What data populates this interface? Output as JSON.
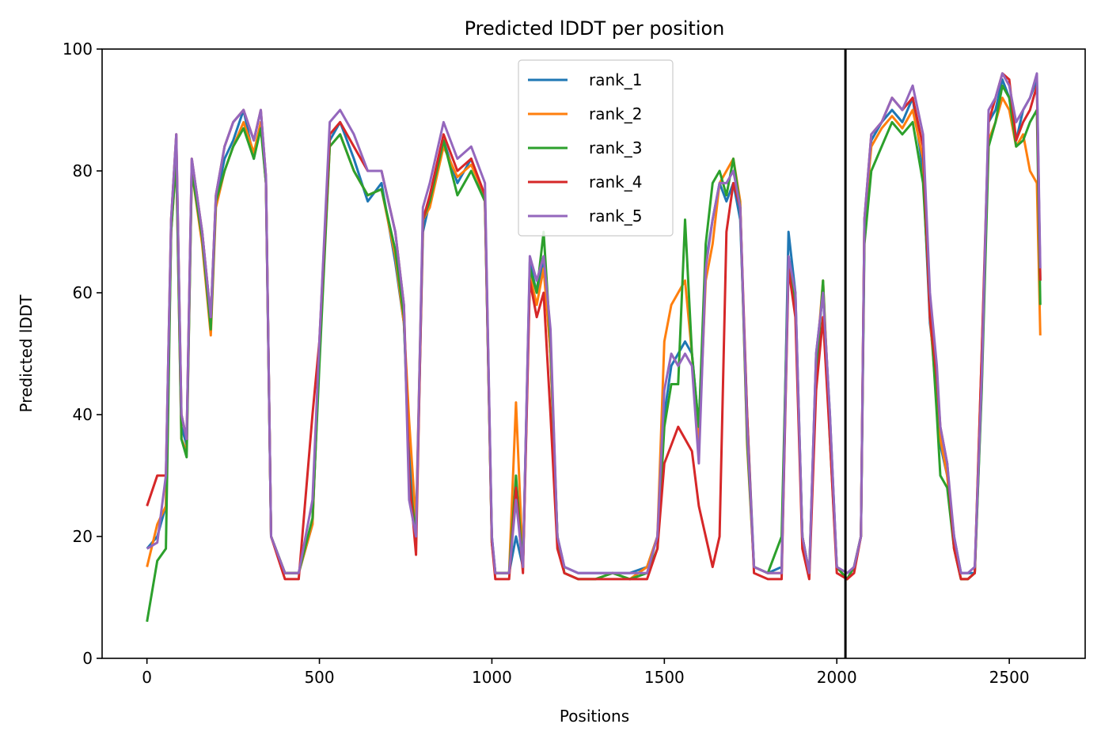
{
  "chart_data": {
    "type": "line",
    "title": "Predicted lDDT per position",
    "xlabel": "Positions",
    "ylabel": "Predicted lDDT",
    "xlim": [
      -130,
      2720
    ],
    "ylim": [
      0,
      100
    ],
    "xticks": [
      0,
      500,
      1000,
      1500,
      2000,
      2500
    ],
    "yticks": [
      0,
      20,
      40,
      60,
      80,
      100
    ],
    "grid": false,
    "legend_position": "upper center",
    "vline": {
      "x": 2025,
      "color": "#000000"
    },
    "x": [
      0,
      30,
      55,
      70,
      85,
      100,
      115,
      130,
      160,
      185,
      200,
      225,
      250,
      280,
      310,
      330,
      345,
      360,
      400,
      440,
      480,
      500,
      530,
      560,
      600,
      640,
      680,
      720,
      745,
      760,
      780,
      800,
      820,
      860,
      900,
      940,
      980,
      1000,
      1010,
      1050,
      1070,
      1090,
      1110,
      1130,
      1150,
      1170,
      1190,
      1210,
      1250,
      1300,
      1350,
      1400,
      1450,
      1480,
      1500,
      1520,
      1540,
      1560,
      1580,
      1600,
      1620,
      1640,
      1660,
      1680,
      1700,
      1720,
      1740,
      1760,
      1800,
      1840,
      1860,
      1880,
      1900,
      1920,
      1940,
      1960,
      1980,
      2000,
      2030,
      2050,
      2070,
      2080,
      2100,
      2130,
      2160,
      2190,
      2220,
      2250,
      2270,
      2290,
      2300,
      2320,
      2340,
      2360,
      2380,
      2400,
      2420,
      2440,
      2460,
      2480,
      2500,
      2520,
      2540,
      2560,
      2580,
      2590
    ],
    "series": [
      {
        "name": "rank_1",
        "color": "#1f77b4",
        "values": [
          18,
          20,
          25,
          70,
          85,
          38,
          35,
          80,
          70,
          55,
          75,
          82,
          85,
          90,
          82,
          88,
          78,
          20,
          14,
          14,
          22,
          50,
          85,
          88,
          82,
          75,
          78,
          65,
          55,
          35,
          20,
          70,
          75,
          85,
          78,
          82,
          75,
          20,
          14,
          14,
          20,
          15,
          65,
          60,
          65,
          50,
          20,
          15,
          14,
          14,
          14,
          14,
          15,
          20,
          40,
          48,
          50,
          52,
          50,
          38,
          65,
          72,
          78,
          75,
          78,
          72,
          40,
          15,
          14,
          15,
          70,
          60,
          20,
          14,
          50,
          60,
          40,
          15,
          13,
          15,
          20,
          70,
          85,
          88,
          90,
          88,
          92,
          80,
          55,
          45,
          35,
          30,
          20,
          14,
          14,
          14,
          45,
          88,
          90,
          95,
          92,
          85,
          90,
          92,
          95,
          62
        ]
      },
      {
        "name": "rank_2",
        "color": "#ff7f0e",
        "values": [
          15,
          22,
          25,
          70,
          82,
          36,
          34,
          80,
          68,
          53,
          74,
          80,
          84,
          88,
          83,
          88,
          78,
          20,
          14,
          14,
          22,
          50,
          84,
          86,
          80,
          76,
          77,
          66,
          55,
          39,
          22,
          72,
          74,
          84,
          79,
          81,
          76,
          19,
          14,
          14,
          42,
          15,
          63,
          58,
          64,
          50,
          20,
          14,
          13,
          13,
          14,
          13,
          15,
          20,
          52,
          58,
          60,
          62,
          50,
          35,
          62,
          68,
          78,
          80,
          82,
          75,
          35,
          15,
          14,
          14,
          65,
          58,
          20,
          14,
          48,
          62,
          38,
          15,
          13,
          15,
          20,
          72,
          84,
          87,
          89,
          87,
          90,
          82,
          56,
          42,
          36,
          30,
          18,
          13,
          13,
          14,
          50,
          85,
          88,
          92,
          90,
          84,
          86,
          80,
          78,
          53
        ]
      },
      {
        "name": "rank_3",
        "color": "#2ca02c",
        "values": [
          6,
          16,
          18,
          70,
          82,
          36,
          33,
          80,
          69,
          54,
          75,
          80,
          84,
          87,
          82,
          87,
          78,
          20,
          14,
          14,
          23,
          48,
          84,
          86,
          80,
          76,
          77,
          67,
          56,
          30,
          20,
          72,
          75,
          85,
          76,
          80,
          75,
          19,
          14,
          14,
          30,
          15,
          64,
          60,
          70,
          52,
          20,
          14,
          13,
          13,
          14,
          13,
          14,
          18,
          38,
          45,
          45,
          72,
          50,
          38,
          68,
          78,
          80,
          76,
          82,
          74,
          36,
          15,
          14,
          20,
          66,
          58,
          20,
          14,
          46,
          62,
          36,
          15,
          13,
          15,
          20,
          68,
          80,
          84,
          88,
          86,
          88,
          78,
          58,
          40,
          30,
          28,
          18,
          13,
          13,
          14,
          44,
          84,
          88,
          94,
          92,
          84,
          85,
          88,
          90,
          58
        ]
      },
      {
        "name": "rank_4",
        "color": "#d62728",
        "values": [
          25,
          30,
          30,
          72,
          86,
          40,
          36,
          82,
          70,
          56,
          76,
          84,
          88,
          90,
          85,
          90,
          79,
          20,
          13,
          13,
          40,
          52,
          86,
          88,
          84,
          80,
          80,
          70,
          58,
          30,
          17,
          72,
          76,
          86,
          80,
          82,
          76,
          19,
          13,
          13,
          28,
          14,
          62,
          56,
          60,
          40,
          18,
          14,
          13,
          13,
          13,
          13,
          13,
          18,
          32,
          35,
          38,
          36,
          34,
          25,
          20,
          15,
          20,
          70,
          78,
          74,
          40,
          14,
          13,
          13,
          64,
          56,
          18,
          13,
          44,
          56,
          36,
          14,
          13,
          14,
          20,
          72,
          86,
          88,
          92,
          90,
          92,
          84,
          56,
          46,
          38,
          32,
          18,
          13,
          13,
          14,
          50,
          88,
          92,
          96,
          95,
          85,
          88,
          90,
          94,
          62
        ]
      },
      {
        "name": "rank_5",
        "color": "#9467bd",
        "values": [
          18,
          19,
          30,
          72,
          86,
          40,
          36,
          82,
          70,
          56,
          76,
          84,
          88,
          90,
          85,
          90,
          79,
          20,
          14,
          14,
          26,
          52,
          88,
          90,
          86,
          80,
          80,
          70,
          58,
          26,
          20,
          74,
          78,
          88,
          82,
          84,
          78,
          20,
          14,
          14,
          26,
          15,
          66,
          62,
          66,
          54,
          20,
          15,
          14,
          14,
          14,
          14,
          14,
          20,
          44,
          50,
          48,
          50,
          48,
          32,
          64,
          72,
          78,
          78,
          80,
          74,
          38,
          15,
          14,
          14,
          66,
          60,
          20,
          14,
          50,
          60,
          40,
          15,
          14,
          15,
          20,
          72,
          86,
          88,
          92,
          90,
          94,
          86,
          60,
          48,
          38,
          32,
          20,
          14,
          14,
          15,
          46,
          90,
          92,
          96,
          94,
          88,
          90,
          92,
          96,
          64
        ]
      }
    ]
  }
}
